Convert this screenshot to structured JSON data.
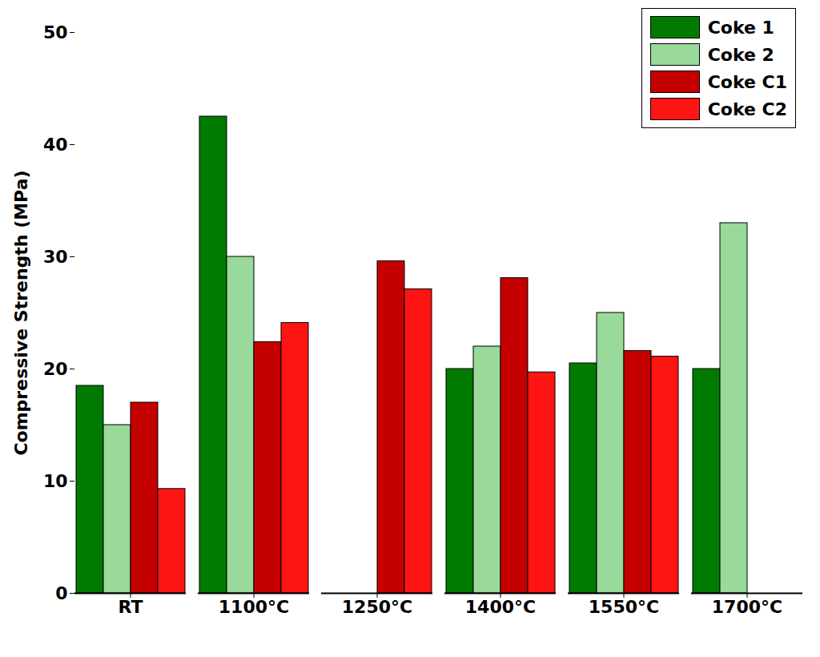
{
  "chart_data": {
    "type": "bar",
    "y_label": "Compressive Strength (MPa)",
    "categories": [
      "RT",
      "1100°C",
      "1250°C",
      "1400°C",
      "1550°C",
      "1700°C"
    ],
    "series": [
      {
        "name": "Coke 1",
        "color": "#007a00",
        "values": [
          18.5,
          42.5,
          null,
          20,
          20.5,
          20
        ]
      },
      {
        "name": "Coke 2",
        "color": "#99d999",
        "values": [
          15,
          30,
          null,
          22,
          25,
          33
        ]
      },
      {
        "name": "Coke C1",
        "color": "#c40000",
        "values": [
          17,
          22.4,
          29.6,
          28.1,
          21.6,
          null
        ]
      },
      {
        "name": "Coke C2",
        "color": "#ff1414",
        "values": [
          9.3,
          24.1,
          27.1,
          19.7,
          21.1,
          null
        ]
      }
    ],
    "ylim": [
      0,
      50
    ],
    "yticks": [
      0,
      10,
      20,
      30,
      40,
      50
    ],
    "grid": false,
    "legend": "upper right"
  }
}
